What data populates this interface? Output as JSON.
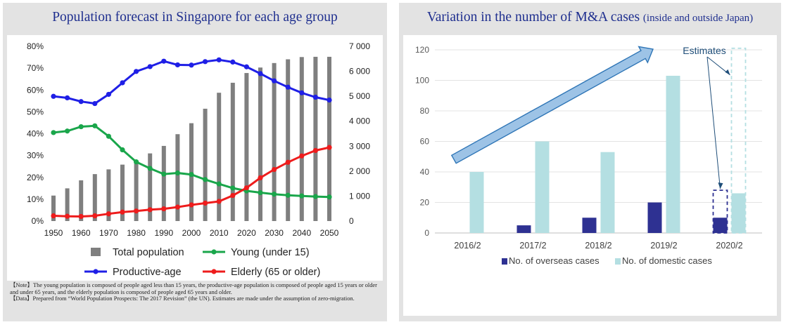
{
  "left_panel": {
    "title": "Population forecast in Singapore for each age group",
    "note": "【Note】The young population is composed of people aged less than 15 years, the productive-age population is composed of people aged 15 years or older and under 65 years, and the elderly population is composed of people aged 65 years and older.",
    "data_source": "【Data】Prepared from “World Population Prospects: The 2017 Revision” (the UN). Estimates are made under the assumption of zero-migration."
  },
  "right_panel": {
    "title_main": "Variation in the number of M&A cases",
    "title_sub": "(inside and outside Japan)",
    "annotation": "Estimates"
  },
  "chart_data": [
    {
      "type": "bar+line",
      "x": [
        1950,
        1955,
        1960,
        1965,
        1970,
        1975,
        1980,
        1985,
        1990,
        1995,
        2000,
        2005,
        2010,
        2015,
        2020,
        2025,
        2030,
        2035,
        2040,
        2045,
        2050
      ],
      "x_tick_labels": [
        "1950",
        "1960",
        "1970",
        "1980",
        "1990",
        "2000",
        "2010",
        "2020",
        "2030",
        "2040",
        "2050"
      ],
      "y_left": {
        "ticks": [
          "0%",
          "10%",
          "20%",
          "30%",
          "40%",
          "50%",
          "60%",
          "70%",
          "80%"
        ],
        "range": [
          0,
          80
        ]
      },
      "y_right": {
        "ticks": [
          "0",
          "1 000",
          "2 000",
          "3 000",
          "4 000",
          "5 000",
          "6 000",
          "7 000"
        ],
        "range": [
          0,
          7000
        ]
      },
      "series": [
        {
          "name": "Total population",
          "kind": "bar",
          "axis": "right",
          "color": "#7f7f7f",
          "values": [
            1020,
            1310,
            1630,
            1880,
            2070,
            2260,
            2410,
            2710,
            3010,
            3480,
            3920,
            4500,
            5140,
            5540,
            5930,
            6150,
            6330,
            6480,
            6570,
            6580,
            6580
          ]
        },
        {
          "name": "Young (under 15)",
          "kind": "line",
          "axis": "left",
          "color": "#1aa64b",
          "values": [
            40.5,
            41.2,
            43.2,
            43.6,
            38.8,
            32.6,
            27.1,
            24.1,
            21.5,
            22.0,
            21.3,
            19.0,
            17.0,
            15.1,
            13.8,
            13.0,
            12.3,
            11.8,
            11.5,
            11.2,
            11.0
          ]
        },
        {
          "name": "Productive-age",
          "kind": "line",
          "axis": "left",
          "color": "#1f1fe6",
          "values": [
            57.1,
            56.4,
            54.7,
            53.8,
            58.0,
            63.3,
            68.5,
            70.7,
            73.2,
            71.5,
            71.4,
            73.0,
            73.8,
            72.8,
            70.6,
            67.5,
            64.2,
            61.3,
            58.7,
            56.7,
            55.4
          ]
        },
        {
          "name": "Elderly (65 or older)",
          "kind": "line",
          "axis": "left",
          "color": "#ee1c1c",
          "values": [
            2.4,
            2.2,
            2.1,
            2.4,
            3.3,
            4.1,
            4.6,
            5.2,
            5.6,
            6.4,
            7.4,
            8.2,
            9.0,
            11.7,
            15.2,
            19.8,
            23.6,
            26.9,
            29.8,
            32.3,
            33.7
          ]
        }
      ]
    },
    {
      "type": "bar",
      "categories": [
        "2016/2",
        "2017/2",
        "2018/2",
        "2019/2",
        "2020/2"
      ],
      "y_axis": {
        "ticks": [
          "0",
          "20",
          "40",
          "60",
          "80",
          "100",
          "120"
        ],
        "range": [
          0,
          120
        ]
      },
      "series": [
        {
          "name": "No. of overseas cases",
          "color": "#2e3192",
          "values": [
            0,
            5,
            10,
            20,
            10
          ]
        },
        {
          "name": "No. of domestic cases",
          "color": "#b4dfe2",
          "values": [
            40,
            60,
            53,
            103,
            26
          ]
        }
      ],
      "estimated_category": "2020/2",
      "estimated_values": {
        "No. of overseas cases": 28,
        "No. of domestic cases": 121
      }
    }
  ]
}
